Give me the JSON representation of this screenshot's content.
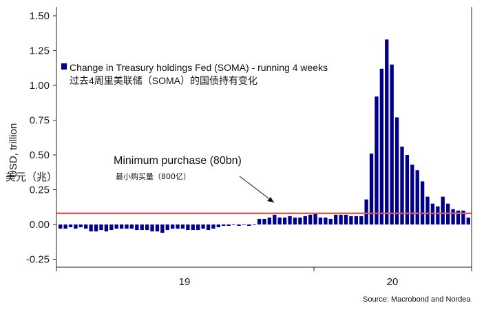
{
  "chart_data": {
    "type": "bar",
    "legend": {
      "label": "Change in Treasury holdings Fed (SOMA) - running 4 weeks",
      "label_cn": "过去4周里美联储（SOMA）的国债持有变化",
      "placement": "top-left"
    },
    "ylabel": "USD, trillion",
    "ylabel_cn": "美元（兆）",
    "ylim": [
      -0.3,
      1.55
    ],
    "yticks": [
      -0.25,
      0,
      0.25,
      0.5,
      0.75,
      1.0,
      1.25,
      1.5
    ],
    "ytick_labels": [
      "-0.25",
      "0.00",
      "0.25",
      "0.50",
      "0.75",
      "1.00",
      "1.25",
      "1.50"
    ],
    "x_tick_labels": [
      "19",
      "20"
    ],
    "threshold_line": {
      "value": 0.08,
      "color": "#ff4d4d"
    },
    "annotation": {
      "text": "Minimum purchase (80bn)",
      "text_cn": "最小购买量（800亿）"
    },
    "source": "Source: Macrobond and Nordea",
    "bar_color": "#00008b",
    "grid": false,
    "values": [
      -0.03,
      -0.03,
      -0.02,
      -0.03,
      -0.02,
      -0.03,
      -0.05,
      -0.05,
      -0.04,
      -0.05,
      -0.04,
      -0.03,
      -0.03,
      -0.03,
      -0.03,
      -0.04,
      -0.04,
      -0.04,
      -0.05,
      -0.05,
      -0.06,
      -0.04,
      -0.03,
      -0.03,
      -0.03,
      -0.04,
      -0.04,
      -0.04,
      -0.03,
      -0.04,
      -0.03,
      -0.02,
      -0.01,
      -0.01,
      0.0,
      -0.01,
      0.0,
      -0.01,
      0.0,
      0.04,
      0.04,
      0.05,
      0.07,
      0.05,
      0.05,
      0.06,
      0.05,
      0.05,
      0.06,
      0.07,
      0.08,
      0.05,
      0.05,
      0.04,
      0.07,
      0.07,
      0.07,
      0.06,
      0.06,
      0.06,
      0.18,
      0.51,
      0.92,
      1.12,
      1.33,
      1.15,
      0.77,
      0.56,
      0.5,
      0.43,
      0.39,
      0.31,
      0.2,
      0.15,
      0.13,
      0.2,
      0.15,
      0.11,
      0.1,
      0.1,
      0.05
    ]
  }
}
